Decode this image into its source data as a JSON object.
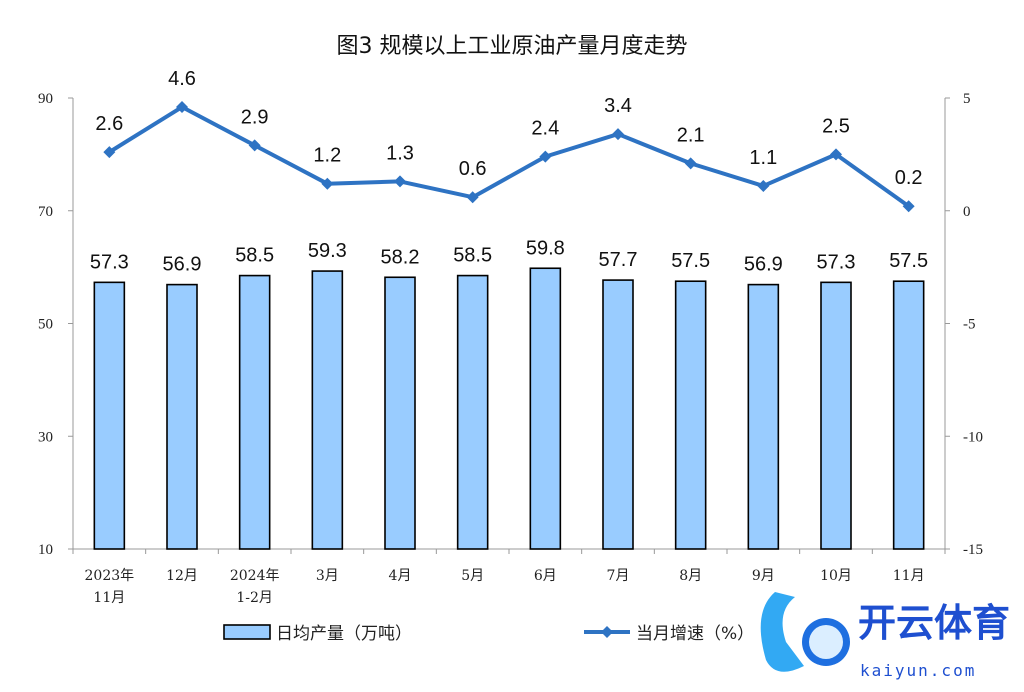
{
  "chart_data": {
    "type": "bar",
    "title": "图3  规模以上工业原油产量月度走势",
    "categories": [
      [
        "2023年",
        "11月"
      ],
      [
        "12月"
      ],
      [
        "2024年",
        "1-2月"
      ],
      [
        "3月"
      ],
      [
        "4月"
      ],
      [
        "5月"
      ],
      [
        "6月"
      ],
      [
        "7月"
      ],
      [
        "8月"
      ],
      [
        "9月"
      ],
      [
        "10月"
      ],
      [
        "11月"
      ]
    ],
    "series": [
      {
        "name": "日均产量（万吨）",
        "type": "bar",
        "axis": "left",
        "values": [
          57.3,
          56.9,
          58.5,
          59.3,
          58.2,
          58.5,
          59.8,
          57.7,
          57.5,
          56.9,
          57.3,
          57.5
        ],
        "color": "#99ccff"
      },
      {
        "name": "当月增速（%）",
        "type": "line",
        "axis": "right",
        "values": [
          2.6,
          4.6,
          2.9,
          1.2,
          1.3,
          0.6,
          2.4,
          3.4,
          2.1,
          1.1,
          2.5,
          0.2
        ],
        "color": "#2e73c3"
      }
    ],
    "left_axis": {
      "range": [
        10,
        90
      ],
      "ticks": [
        10,
        30,
        50,
        70,
        90
      ]
    },
    "right_axis": {
      "range": [
        -15,
        5
      ],
      "ticks": [
        -15,
        -10,
        -5,
        0,
        5
      ]
    },
    "legend": "bottom",
    "grid": false
  },
  "watermark": {
    "brand": "开云体育",
    "domain": "kaiyun.com"
  }
}
